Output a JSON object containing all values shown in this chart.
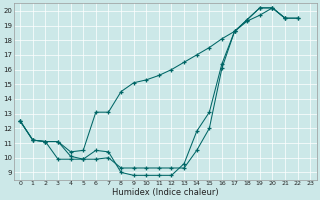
{
  "xlabel": "Humidex (Indice chaleur)",
  "xlim": [
    -0.5,
    23.5
  ],
  "ylim": [
    8.5,
    20.5
  ],
  "xticks": [
    0,
    1,
    2,
    3,
    4,
    5,
    6,
    7,
    8,
    9,
    10,
    11,
    12,
    13,
    14,
    15,
    16,
    17,
    18,
    19,
    20,
    21,
    22,
    23
  ],
  "yticks": [
    9,
    10,
    11,
    12,
    13,
    14,
    15,
    16,
    17,
    18,
    19,
    20
  ],
  "bg_color": "#cce8e8",
  "line_color": "#006666",
  "line1_x": [
    0,
    1,
    2,
    3,
    4,
    5,
    6,
    7,
    8,
    9,
    10,
    11,
    12,
    13,
    14,
    15,
    16,
    17,
    18,
    19,
    20,
    21,
    22
  ],
  "line1_y": [
    12.5,
    11.2,
    11.1,
    11.1,
    10.4,
    10.5,
    13.1,
    13.1,
    14.5,
    15.1,
    15.3,
    15.6,
    16.0,
    16.5,
    17.0,
    17.5,
    18.1,
    18.6,
    19.3,
    19.7,
    20.2,
    19.5,
    19.5
  ],
  "line2_x": [
    0,
    1,
    2,
    3,
    4,
    5,
    6,
    7,
    8,
    9,
    10,
    11,
    12,
    13,
    14,
    15,
    16,
    17,
    18,
    19,
    20,
    21,
    22
  ],
  "line2_y": [
    12.5,
    11.2,
    11.1,
    9.9,
    9.9,
    9.9,
    10.5,
    10.4,
    9.0,
    8.8,
    8.8,
    8.8,
    8.8,
    9.6,
    11.8,
    13.1,
    16.4,
    18.6,
    19.4,
    20.2,
    20.2,
    19.5,
    19.5
  ],
  "line3_x": [
    0,
    1,
    2,
    3,
    4,
    5,
    6,
    7,
    8,
    9,
    10,
    11,
    12,
    13,
    14,
    15,
    16,
    17,
    18,
    19,
    20,
    21
  ],
  "line3_y": [
    12.5,
    11.2,
    11.1,
    11.1,
    10.1,
    9.9,
    9.9,
    10.0,
    9.3,
    9.3,
    9.3,
    9.3,
    9.3,
    9.3,
    10.5,
    12.0,
    16.1,
    18.6,
    19.4,
    20.2,
    20.2,
    19.5
  ]
}
